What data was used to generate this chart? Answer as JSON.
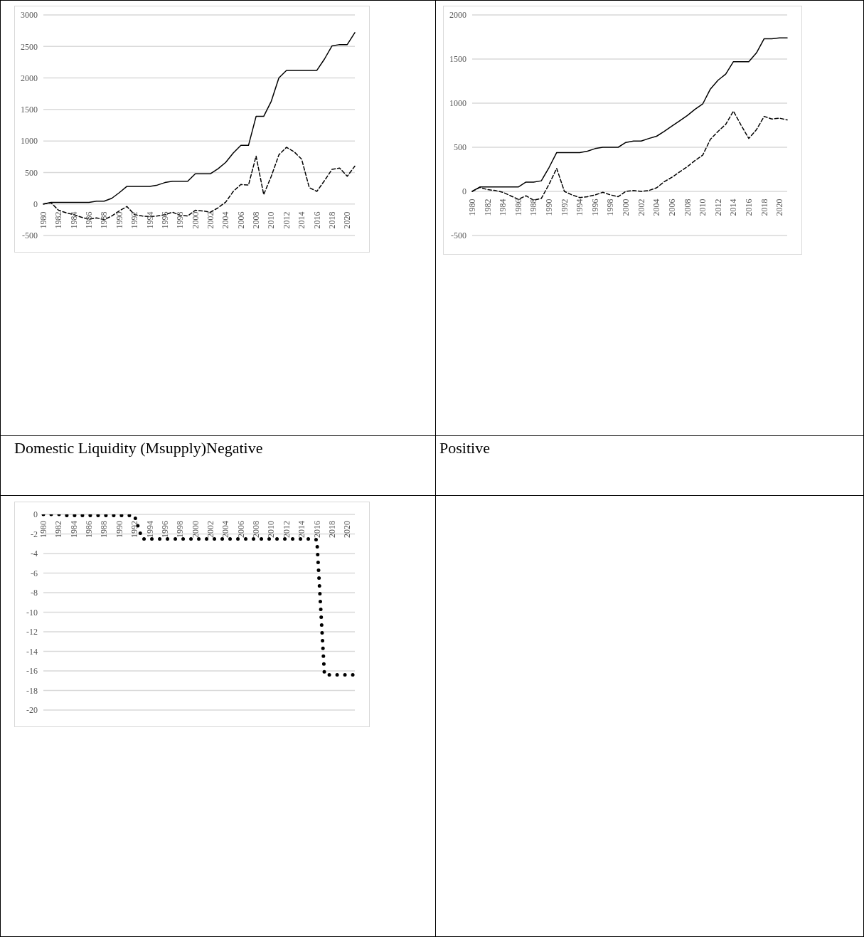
{
  "chart_data": [
    {
      "type": "line",
      "categories": [
        "1980",
        null,
        "1982",
        null,
        "1984",
        null,
        "1986",
        null,
        "1988",
        null,
        "1990",
        null,
        "1992",
        null,
        "1994",
        null,
        "1996",
        null,
        "1998",
        null,
        "2000",
        null,
        "2002",
        null,
        "2004",
        null,
        "2006",
        null,
        "2008",
        null,
        "2010",
        null,
        "2012",
        null,
        "2014",
        null,
        "2016",
        null,
        "2018",
        null,
        "2020",
        null
      ],
      "series": [
        {
          "color": "#000000",
          "line_style": "solid",
          "values": [
            0,
            25,
            25,
            25,
            25,
            25,
            25,
            45,
            45,
            90,
            180,
            280,
            280,
            280,
            280,
            300,
            340,
            360,
            360,
            360,
            480,
            480,
            480,
            560,
            660,
            810,
            930,
            930,
            1390,
            1390,
            1630,
            2000,
            2120,
            2120,
            2120,
            2120,
            2120,
            2300,
            2510,
            2530,
            2530,
            2720
          ]
        },
        {
          "color": "#000000",
          "line_style": "dashed",
          "values": [
            0,
            20,
            -100,
            -140,
            -170,
            -210,
            -240,
            -220,
            -250,
            -190,
            -110,
            -40,
            -170,
            -190,
            -200,
            -190,
            -170,
            -130,
            -180,
            -190,
            -100,
            -110,
            -130,
            -60,
            30,
            200,
            310,
            300,
            760,
            150,
            440,
            780,
            900,
            830,
            710,
            260,
            200,
            370,
            550,
            570,
            440,
            600
          ]
        }
      ],
      "ylim": [
        -500,
        3000
      ],
      "yticks": [
        -500,
        0,
        500,
        1000,
        1500,
        2000,
        2500,
        3000
      ],
      "grid": "y",
      "marker": "none",
      "annotations": [
        "Domestic Liquidity (Msupply)Negative"
      ]
    },
    {
      "type": "line",
      "categories": [
        "1980",
        null,
        "1982",
        null,
        "1984",
        null,
        "1986",
        null,
        "1988",
        null,
        "1990",
        null,
        "1992",
        null,
        "1994",
        null,
        "1996",
        null,
        "1998",
        null,
        "2000",
        null,
        "2002",
        null,
        "2004",
        null,
        "2006",
        null,
        "2008",
        null,
        "2010",
        null,
        "2012",
        null,
        "2014",
        null,
        "2016",
        null,
        "2018",
        null,
        "2020",
        null
      ],
      "series": [
        {
          "color": "#000000",
          "line_style": "solid",
          "values": [
            0,
            50,
            50,
            50,
            50,
            50,
            50,
            105,
            105,
            120,
            270,
            440,
            440,
            440,
            440,
            455,
            485,
            500,
            500,
            500,
            555,
            570,
            570,
            600,
            625,
            680,
            740,
            800,
            860,
            930,
            990,
            1160,
            1260,
            1330,
            1470,
            1470,
            1470,
            1570,
            1730,
            1730,
            1740,
            1740
          ]
        },
        {
          "color": "#000000",
          "line_style": "dashed",
          "values": [
            0,
            45,
            20,
            10,
            -10,
            -50,
            -90,
            -50,
            -100,
            -80,
            80,
            260,
            0,
            -40,
            -70,
            -60,
            -40,
            -10,
            -40,
            -60,
            0,
            10,
            0,
            10,
            40,
            110,
            160,
            220,
            280,
            350,
            410,
            590,
            680,
            760,
            910,
            750,
            600,
            700,
            850,
            820,
            830,
            810
          ]
        }
      ],
      "ylim": [
        -500,
        2000
      ],
      "yticks": [
        -500,
        0,
        500,
        1000,
        1500,
        2000
      ],
      "grid": "y",
      "marker": "none",
      "annotations": [
        "Positive"
      ]
    },
    {
      "type": "line",
      "categories": [
        "1980",
        null,
        "1982",
        null,
        "1984",
        null,
        "1986",
        null,
        "1988",
        null,
        "1990",
        null,
        "1992",
        null,
        "1994",
        null,
        "1996",
        null,
        "1998",
        null,
        "2000",
        null,
        "2002",
        null,
        "2004",
        null,
        "2006",
        null,
        "2008",
        null,
        "2010",
        null,
        "2012",
        null,
        "2014",
        null,
        "2016",
        null,
        "2018",
        null,
        "2020",
        null
      ],
      "series": [
        {
          "color": "#000000",
          "line_style": "dotted",
          "values": [
            0,
            0,
            0,
            -0.1,
            -0.1,
            -0.1,
            -0.1,
            -0.1,
            -0.1,
            -0.1,
            -0.1,
            -0.1,
            -0.15,
            -2.5,
            -2.5,
            -2.5,
            -2.5,
            -2.5,
            -2.5,
            -2.5,
            -2.5,
            -2.5,
            -2.5,
            -2.5,
            -2.5,
            -2.5,
            -2.5,
            -2.5,
            -2.5,
            -2.5,
            -2.5,
            -2.5,
            -2.5,
            -2.5,
            -2.5,
            -2.5,
            -2.6,
            -16.4,
            -16.4,
            -16.4,
            -16.4,
            -16.4
          ]
        }
      ],
      "ylim": [
        -20,
        0
      ],
      "yticks": [
        -20,
        -18,
        -16,
        -14,
        -12,
        -10,
        -8,
        -6,
        -4,
        -2,
        0
      ],
      "grid": "y",
      "marker": "none"
    }
  ]
}
